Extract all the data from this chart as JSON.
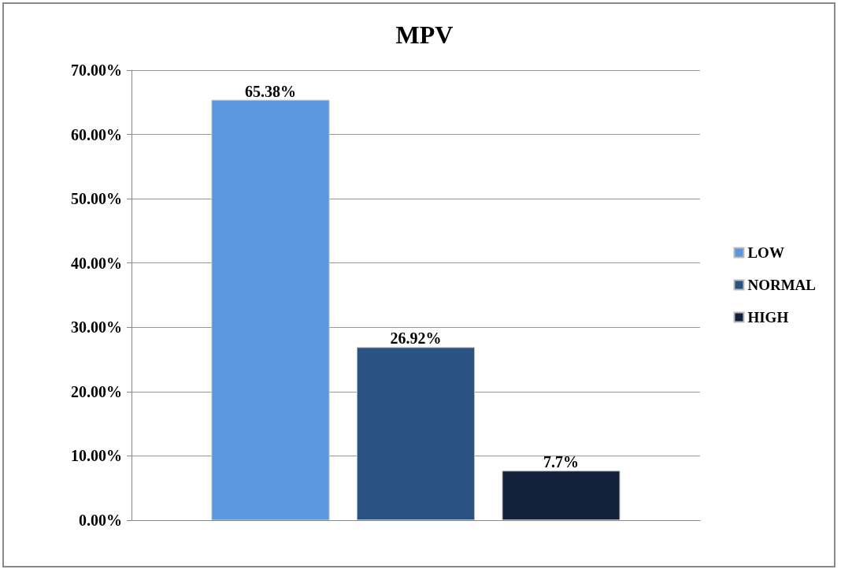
{
  "chart_data": {
    "type": "bar",
    "title": "MPV",
    "categories": [
      null
    ],
    "series": [
      {
        "name": "LOW",
        "color": "#5b97dc",
        "values": [
          65.38
        ],
        "value_labels": [
          "65.38%"
        ]
      },
      {
        "name": "NORMAL",
        "color": "#2a5283",
        "values": [
          26.92
        ],
        "value_labels": [
          "26.92%"
        ]
      },
      {
        "name": "HIGH",
        "color": "#13223a",
        "values": [
          7.7
        ],
        "value_labels": [
          "7.7%"
        ]
      }
    ],
    "ylim": [
      0,
      70
    ],
    "yticks": [
      {
        "value": 0,
        "label": "0.00%"
      },
      {
        "value": 10,
        "label": "10.00%"
      },
      {
        "value": 20,
        "label": "20.00%"
      },
      {
        "value": 30,
        "label": "30.00%"
      },
      {
        "value": 40,
        "label": "40.00%"
      },
      {
        "value": 50,
        "label": "50.00%"
      },
      {
        "value": 60,
        "label": "60.00%"
      },
      {
        "value": 70,
        "label": "70.00%"
      }
    ],
    "grid": "y",
    "legend": "right"
  }
}
